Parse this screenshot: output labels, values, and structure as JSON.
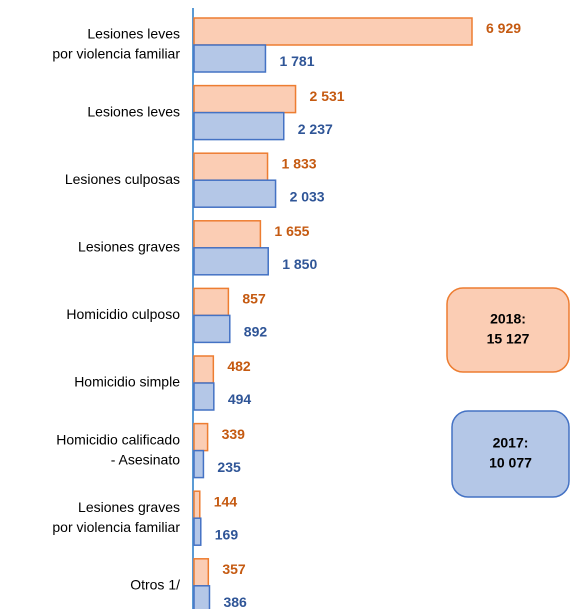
{
  "chart_data": {
    "type": "hbar",
    "categories": [
      [
        "Lesiones leves",
        "por violencia familiar"
      ],
      [
        "Lesiones leves"
      ],
      [
        "Lesiones culposas"
      ],
      [
        "Lesiones graves"
      ],
      [
        "Homicidio culposo"
      ],
      [
        "Homicidio simple"
      ],
      [
        "Homicidio calificado",
        "- Asesinato"
      ],
      [
        "Lesiones graves",
        "por violencia familiar"
      ],
      [
        "Otros 1/"
      ]
    ],
    "series": [
      {
        "color": "#ed7d31",
        "fill": "#fbcdb4",
        "label_color": "#c55a11",
        "values": [
          6929,
          2531,
          1833,
          1655,
          857,
          482,
          339,
          144,
          357
        ],
        "value_labels": [
          "6 929",
          "2 531",
          "1 833",
          "1 655",
          "857",
          "482",
          "339",
          "144",
          "357"
        ]
      },
      {
        "color": "#4472c4",
        "fill": "#b4c7e7",
        "label_color": "#2f5597",
        "values": [
          1781,
          2237,
          2033,
          1850,
          892,
          494,
          235,
          169,
          386
        ],
        "value_labels": [
          "1 781",
          "2 237",
          "2 033",
          "1 850",
          "892",
          "494",
          "235",
          "169",
          "386"
        ]
      }
    ],
    "annotations": [
      {
        "lines": [
          "2018:",
          "15 127"
        ],
        "color": "#ed7d31",
        "fill": "#fbcdb4"
      },
      {
        "lines": [
          "2017:",
          "10 077"
        ],
        "color": "#4472c4",
        "fill": "#b4c7e7"
      }
    ]
  }
}
